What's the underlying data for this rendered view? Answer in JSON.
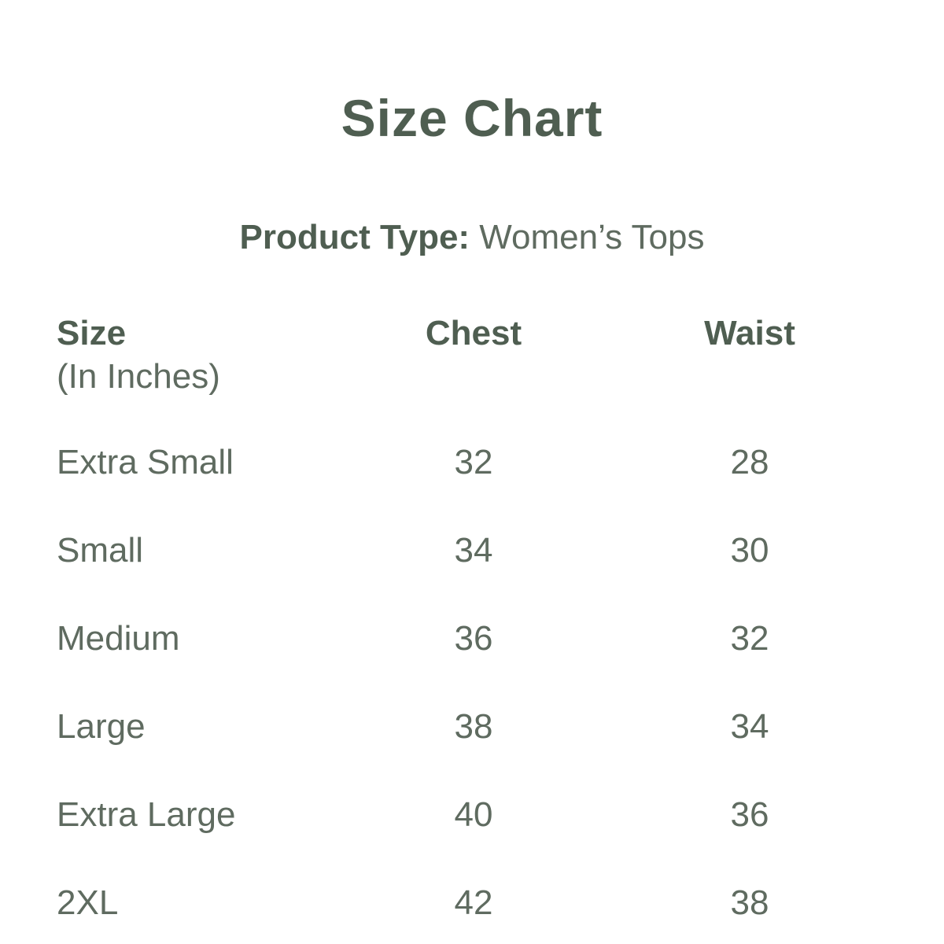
{
  "page": {
    "title": "Size Chart",
    "product_type_label": "Product Type:",
    "product_type_value": "Women’s Tops"
  },
  "table": {
    "columns": [
      {
        "label": "Size",
        "sublabel": "(In Inches)"
      },
      {
        "label": "Chest"
      },
      {
        "label": "Waist"
      }
    ],
    "rows": [
      {
        "size": "Extra Small",
        "chest": "32",
        "waist": "28"
      },
      {
        "size": "Small",
        "chest": "34",
        "waist": "30"
      },
      {
        "size": "Medium",
        "chest": "36",
        "waist": "32"
      },
      {
        "size": "Large",
        "chest": "38",
        "waist": "34"
      },
      {
        "size": "Extra Large",
        "chest": "40",
        "waist": "36"
      },
      {
        "size": "2XL",
        "chest": "42",
        "waist": "38"
      }
    ]
  },
  "colors": {
    "heading": "#4f5e51",
    "text": "#5f6b60",
    "background": "#ffffff"
  }
}
